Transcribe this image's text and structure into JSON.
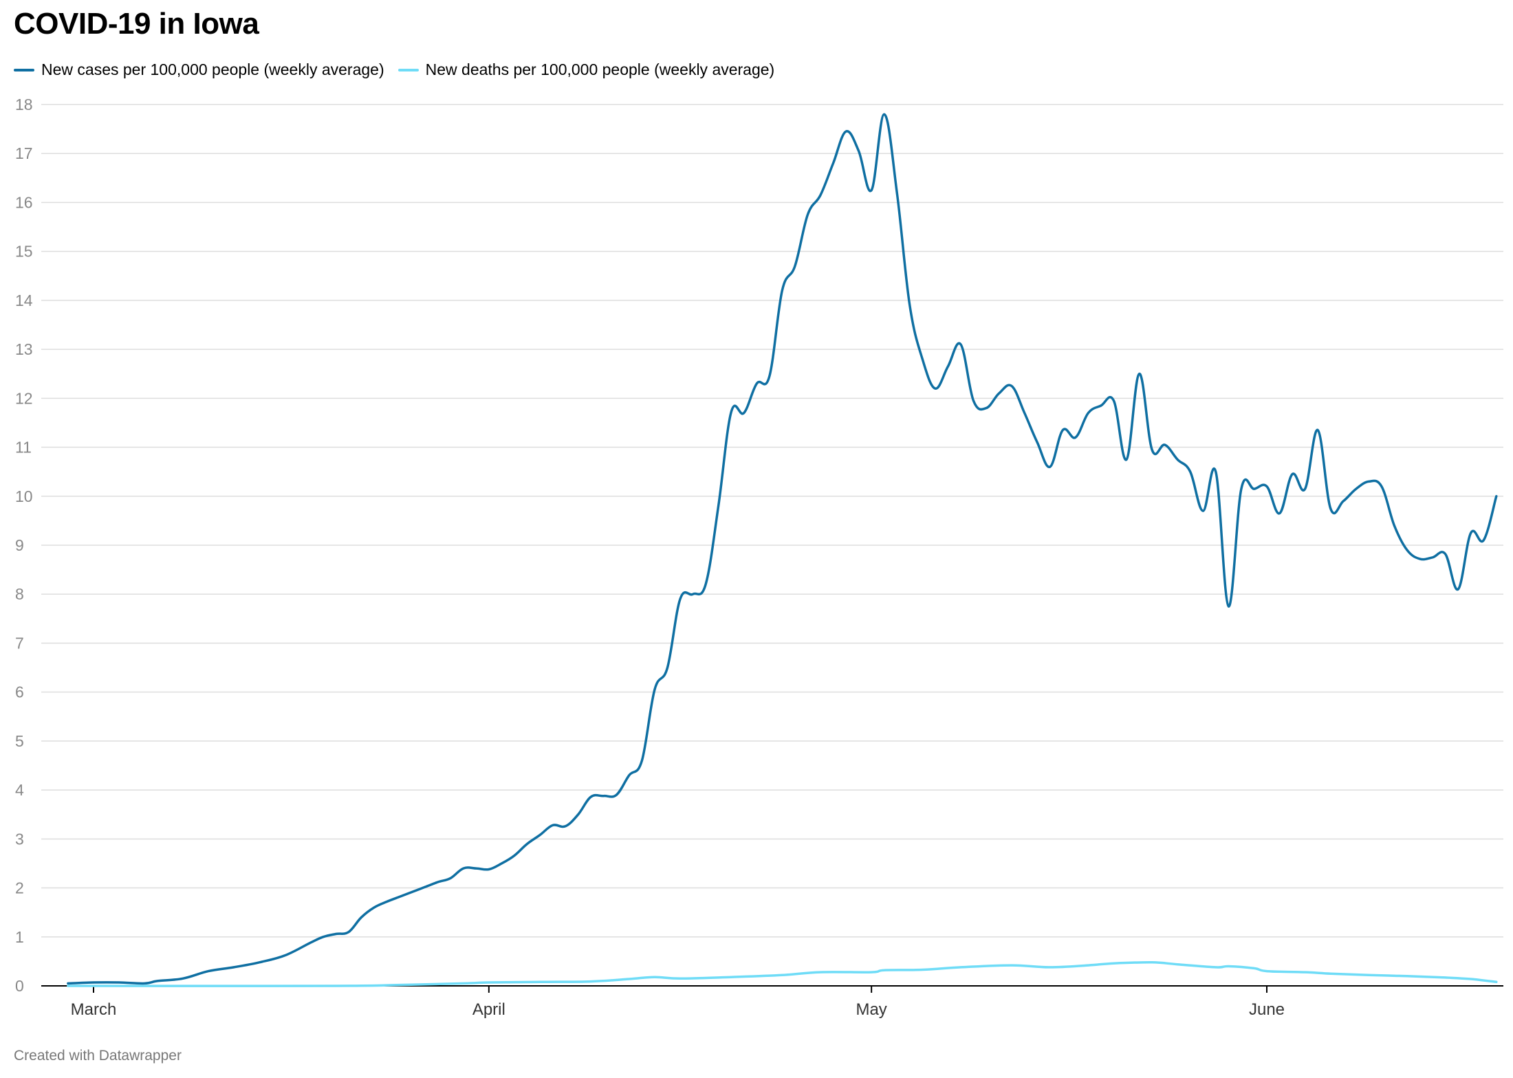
{
  "header": {
    "title": "COVID-19 in Iowa"
  },
  "footer": {
    "credit": "Created with Datawrapper"
  },
  "colors": {
    "cases": "#0f6fa2",
    "deaths": "#6fdcf7",
    "grid": "#dddddd",
    "axis": "#000000"
  },
  "chart_data": {
    "type": "line",
    "title": "COVID-19 in Iowa",
    "xlabel": "",
    "ylabel": "",
    "ylim": [
      0,
      18
    ],
    "yticks": [
      0,
      1,
      2,
      3,
      4,
      5,
      6,
      7,
      8,
      9,
      10,
      11,
      12,
      13,
      14,
      15,
      16,
      17,
      18
    ],
    "grid": true,
    "legend": "top-left",
    "x_start": "2020-02-28",
    "x_end": "2020-06-15",
    "xticks": [
      {
        "label": "March",
        "date": "2020-03-01"
      },
      {
        "label": "April",
        "date": "2020-04-01"
      },
      {
        "label": "May",
        "date": "2020-05-01"
      },
      {
        "label": "June",
        "date": "2020-06-01"
      }
    ],
    "series": [
      {
        "name": "New cases per 100,000 people (weekly average)",
        "color": "#0f6fa2",
        "points": [
          [
            "2020-02-28",
            0.05
          ],
          [
            "2020-03-01",
            0.07
          ],
          [
            "2020-03-03",
            0.07
          ],
          [
            "2020-03-05",
            0.05
          ],
          [
            "2020-03-06",
            0.1
          ],
          [
            "2020-03-08",
            0.15
          ],
          [
            "2020-03-10",
            0.3
          ],
          [
            "2020-03-12",
            0.38
          ],
          [
            "2020-03-14",
            0.48
          ],
          [
            "2020-03-16",
            0.62
          ],
          [
            "2020-03-18",
            0.88
          ],
          [
            "2020-03-19",
            1.0
          ],
          [
            "2020-03-20",
            1.06
          ],
          [
            "2020-03-21",
            1.1
          ],
          [
            "2020-03-22",
            1.4
          ],
          [
            "2020-03-23",
            1.6
          ],
          [
            "2020-03-24",
            1.72
          ],
          [
            "2020-03-25",
            1.82
          ],
          [
            "2020-03-26",
            1.92
          ],
          [
            "2020-03-27",
            2.02
          ],
          [
            "2020-03-28",
            2.12
          ],
          [
            "2020-03-29",
            2.2
          ],
          [
            "2020-03-30",
            2.4
          ],
          [
            "2020-03-31",
            2.4
          ],
          [
            "2020-04-01",
            2.38
          ],
          [
            "2020-04-02",
            2.5
          ],
          [
            "2020-04-03",
            2.66
          ],
          [
            "2020-04-04",
            2.9
          ],
          [
            "2020-04-05",
            3.08
          ],
          [
            "2020-04-06",
            3.28
          ],
          [
            "2020-04-07",
            3.26
          ],
          [
            "2020-04-08",
            3.5
          ],
          [
            "2020-04-09",
            3.86
          ],
          [
            "2020-04-10",
            3.88
          ],
          [
            "2020-04-11",
            3.9
          ],
          [
            "2020-04-12",
            4.3
          ],
          [
            "2020-04-13",
            4.6
          ],
          [
            "2020-04-14",
            6.05
          ],
          [
            "2020-04-15",
            6.5
          ],
          [
            "2020-04-16",
            7.9
          ],
          [
            "2020-04-17",
            8.0
          ],
          [
            "2020-04-18",
            8.2
          ],
          [
            "2020-04-19",
            9.8
          ],
          [
            "2020-04-20",
            11.72
          ],
          [
            "2020-04-21",
            11.7
          ],
          [
            "2020-04-22",
            12.3
          ],
          [
            "2020-04-23",
            12.45
          ],
          [
            "2020-04-24",
            14.2
          ],
          [
            "2020-04-25",
            14.7
          ],
          [
            "2020-04-26",
            15.75
          ],
          [
            "2020-04-27",
            16.15
          ],
          [
            "2020-04-28",
            16.8
          ],
          [
            "2020-04-29",
            17.45
          ],
          [
            "2020-04-30",
            17.05
          ],
          [
            "2020-05-01",
            16.25
          ],
          [
            "2020-05-02",
            17.8
          ],
          [
            "2020-05-03",
            16.2
          ],
          [
            "2020-05-04",
            13.9
          ],
          [
            "2020-05-05",
            12.8
          ],
          [
            "2020-05-06",
            12.2
          ],
          [
            "2020-05-07",
            12.65
          ],
          [
            "2020-05-08",
            13.1
          ],
          [
            "2020-05-09",
            11.95
          ],
          [
            "2020-05-10",
            11.8
          ],
          [
            "2020-05-11",
            12.1
          ],
          [
            "2020-05-12",
            12.25
          ],
          [
            "2020-05-13",
            11.7
          ],
          [
            "2020-05-14",
            11.1
          ],
          [
            "2020-05-15",
            10.6
          ],
          [
            "2020-05-16",
            11.35
          ],
          [
            "2020-05-17",
            11.2
          ],
          [
            "2020-05-18",
            11.7
          ],
          [
            "2020-05-19",
            11.85
          ],
          [
            "2020-05-20",
            11.95
          ],
          [
            "2020-05-21",
            10.75
          ],
          [
            "2020-05-22",
            12.5
          ],
          [
            "2020-05-23",
            10.95
          ],
          [
            "2020-05-24",
            11.05
          ],
          [
            "2020-05-25",
            10.75
          ],
          [
            "2020-05-26",
            10.5
          ],
          [
            "2020-05-27",
            9.7
          ],
          [
            "2020-05-28",
            10.5
          ],
          [
            "2020-05-29",
            7.75
          ],
          [
            "2020-05-30",
            10.15
          ],
          [
            "2020-05-31",
            10.15
          ],
          [
            "2020-06-01",
            10.2
          ],
          [
            "2020-06-02",
            9.65
          ],
          [
            "2020-06-03",
            10.45
          ],
          [
            "2020-06-04",
            10.15
          ],
          [
            "2020-06-05",
            11.35
          ],
          [
            "2020-06-06",
            9.75
          ],
          [
            "2020-06-07",
            9.9
          ],
          [
            "2020-06-08",
            10.15
          ],
          [
            "2020-06-09",
            10.3
          ],
          [
            "2020-06-10",
            10.2
          ],
          [
            "2020-06-11",
            9.4
          ],
          [
            "2020-06-12",
            8.9
          ],
          [
            "2020-06-13",
            8.72
          ],
          [
            "2020-06-14",
            8.75
          ],
          [
            "2020-06-15",
            8.82
          ],
          [
            "2020-06-16",
            8.1
          ],
          [
            "2020-06-17",
            9.25
          ],
          [
            "2020-06-18",
            9.1
          ],
          [
            "2020-06-19",
            10.0
          ]
        ]
      },
      {
        "name": "New deaths per 100,000 people (weekly average)",
        "color": "#6fdcf7",
        "points": [
          [
            "2020-02-28",
            0.0
          ],
          [
            "2020-03-20",
            0.0
          ],
          [
            "2020-03-25",
            0.02
          ],
          [
            "2020-03-30",
            0.05
          ],
          [
            "2020-04-01",
            0.07
          ],
          [
            "2020-04-05",
            0.08
          ],
          [
            "2020-04-09",
            0.09
          ],
          [
            "2020-04-12",
            0.14
          ],
          [
            "2020-04-14",
            0.18
          ],
          [
            "2020-04-16",
            0.15
          ],
          [
            "2020-04-20",
            0.18
          ],
          [
            "2020-04-24",
            0.22
          ],
          [
            "2020-04-27",
            0.28
          ],
          [
            "2020-05-01",
            0.28
          ],
          [
            "2020-05-02",
            0.32
          ],
          [
            "2020-05-05",
            0.33
          ],
          [
            "2020-05-08",
            0.38
          ],
          [
            "2020-05-12",
            0.42
          ],
          [
            "2020-05-15",
            0.38
          ],
          [
            "2020-05-18",
            0.42
          ],
          [
            "2020-05-20",
            0.46
          ],
          [
            "2020-05-23",
            0.48
          ],
          [
            "2020-05-25",
            0.44
          ],
          [
            "2020-05-28",
            0.38
          ],
          [
            "2020-05-29",
            0.4
          ],
          [
            "2020-05-31",
            0.36
          ],
          [
            "2020-06-01",
            0.3
          ],
          [
            "2020-06-04",
            0.28
          ],
          [
            "2020-06-06",
            0.25
          ],
          [
            "2020-06-09",
            0.22
          ],
          [
            "2020-06-12",
            0.2
          ],
          [
            "2020-06-15",
            0.17
          ],
          [
            "2020-06-17",
            0.14
          ],
          [
            "2020-06-19",
            0.08
          ]
        ]
      }
    ]
  }
}
